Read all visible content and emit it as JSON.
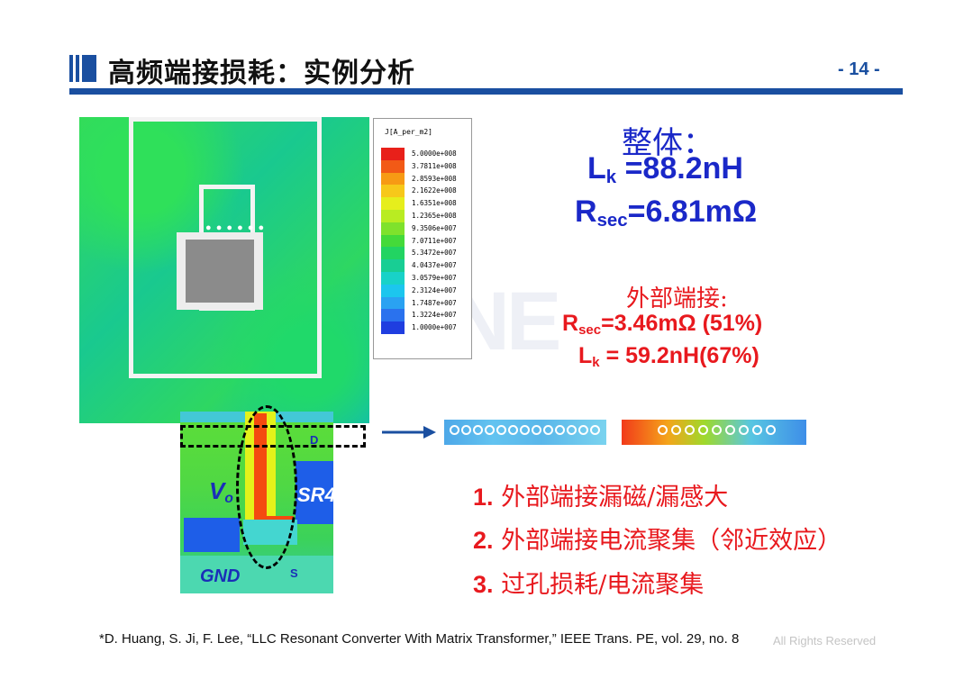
{
  "header": {
    "title": "高频端接损耗：实例分析",
    "page_number": "- 14 -",
    "accent_color": "#1a4fa0"
  },
  "watermark_text": "INE",
  "simulation": {
    "legend_title": "J[A_per_m2]",
    "legend_entries": [
      {
        "value": "5.0000e+008",
        "color": "#e8201a"
      },
      {
        "value": "3.7811e+008",
        "color": "#f25a16"
      },
      {
        "value": "2.8593e+008",
        "color": "#f79a14"
      },
      {
        "value": "2.1622e+008",
        "color": "#f7c81a"
      },
      {
        "value": "1.6351e+008",
        "color": "#e6ee1c"
      },
      {
        "value": "1.2365e+008",
        "color": "#b9ec22"
      },
      {
        "value": "9.3506e+007",
        "color": "#7fe22c"
      },
      {
        "value": "7.0711e+007",
        "color": "#44da3a"
      },
      {
        "value": "5.3472e+007",
        "color": "#22d462"
      },
      {
        "value": "4.0437e+007",
        "color": "#18ce94"
      },
      {
        "value": "3.0579e+007",
        "color": "#18d2c8"
      },
      {
        "value": "2.3124e+007",
        "color": "#1cc6ee"
      },
      {
        "value": "1.7487e+007",
        "color": "#2aa2f2"
      },
      {
        "value": "1.3224e+007",
        "color": "#2a72ee"
      },
      {
        "value": "1.0000e+007",
        "color": "#1f3ee0"
      }
    ],
    "board_labels": {
      "vo": "V",
      "vo_sub": "o",
      "sr4": "SR4",
      "gnd": "GND",
      "drain": "D",
      "source": "S"
    }
  },
  "overall": {
    "heading": "整体：",
    "lk_symbol": "L",
    "lk_sub": "k",
    "lk_value": " =88.2nH",
    "r_symbol": "R",
    "r_sub": "sec",
    "r_value": "=6.81mΩ",
    "color": "#1a28c8"
  },
  "external": {
    "heading": "外部端接:",
    "r_symbol": "R",
    "r_sub": "sec",
    "r_value": "=3.46mΩ (51%)",
    "lk_symbol": "L",
    "lk_sub": "k",
    "lk_value": " = 59.2nH(67%)",
    "color": "#e8191e"
  },
  "points": [
    {
      "num": "1.",
      "text": " 外部端接漏磁/漏感大"
    },
    {
      "num": "2.",
      "text": " 外部端接电流聚集（邻近效应）"
    },
    {
      "num": "3.",
      "text": " 过孔损耗/电流聚集"
    }
  ],
  "footnote": "*D. Huang, S. Ji, F. Lee, “LLC Resonant Converter With Matrix Transformer,” IEEE Trans. PE, vol. 29, no. 8",
  "footnote_overlay": "All Rights Reserved"
}
